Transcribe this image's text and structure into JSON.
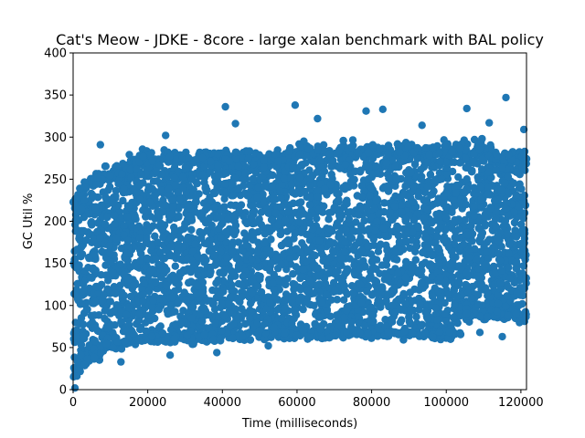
{
  "chart_data": {
    "type": "scatter",
    "title": "Cat's Meow - JDKE - 8core -  large xalan benchmark with BAL policy",
    "xlabel": "Time (milliseconds)",
    "ylabel": "GC Util %",
    "xlim": [
      0,
      121500
    ],
    "ylim": [
      0,
      400
    ],
    "xticks": [
      0,
      20000,
      40000,
      60000,
      80000,
      100000,
      120000
    ],
    "yticks": [
      0,
      50,
      100,
      150,
      200,
      250,
      300,
      350,
      400
    ],
    "grid": false,
    "marker_color": "#1f77b4",
    "dense_band": {
      "x_range": [
        0,
        121500
      ],
      "lower_y_start": 15,
      "lower_y_mid": 60,
      "upper_y_start": 210,
      "upper_y_mid": 270,
      "n_points": 6500
    },
    "outliers": [
      {
        "x": 116000,
        "y": 347
      },
      {
        "x": 59500,
        "y": 338
      },
      {
        "x": 40800,
        "y": 336
      },
      {
        "x": 78500,
        "y": 331
      },
      {
        "x": 83000,
        "y": 333
      },
      {
        "x": 105500,
        "y": 334
      },
      {
        "x": 24800,
        "y": 302
      },
      {
        "x": 43500,
        "y": 316
      },
      {
        "x": 65500,
        "y": 322
      },
      {
        "x": 93500,
        "y": 314
      },
      {
        "x": 111500,
        "y": 317
      },
      {
        "x": 7300,
        "y": 291
      },
      {
        "x": 120800,
        "y": 309
      },
      {
        "x": 3500,
        "y": 240
      },
      {
        "x": 1800,
        "y": 239
      },
      {
        "x": 38500,
        "y": 44
      },
      {
        "x": 12800,
        "y": 33
      },
      {
        "x": 26000,
        "y": 41
      },
      {
        "x": 52300,
        "y": 52
      },
      {
        "x": 1000,
        "y": 16
      },
      {
        "x": 500,
        "y": 2
      },
      {
        "x": 115000,
        "y": 63
      },
      {
        "x": 109000,
        "y": 68
      }
    ]
  }
}
